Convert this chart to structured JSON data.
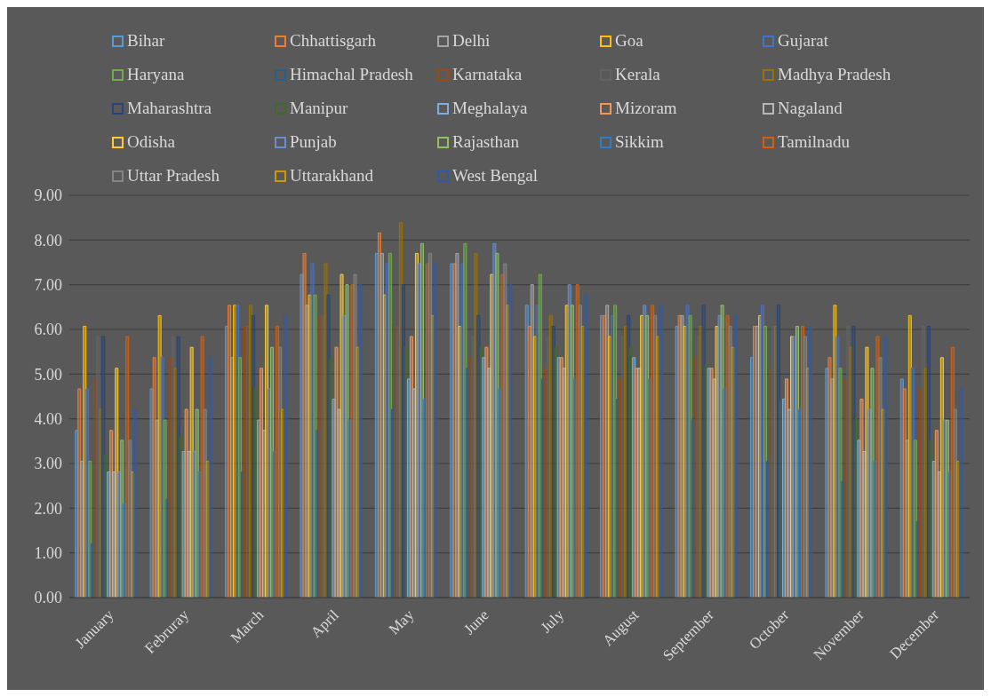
{
  "chart_data": {
    "type": "bar",
    "categories": [
      "January",
      "Februray",
      "March",
      "April",
      "May",
      "June",
      "July",
      "August",
      "September",
      "October",
      "November",
      "December"
    ],
    "ylim": [
      0,
      9
    ],
    "yticks": [
      {
        "value": 0,
        "label": "0.00"
      },
      {
        "value": 1,
        "label": "1.00"
      },
      {
        "value": 2,
        "label": "2.00"
      },
      {
        "value": 3,
        "label": "3.00"
      },
      {
        "value": 4,
        "label": "4.00"
      },
      {
        "value": 5,
        "label": "5.00"
      },
      {
        "value": 6,
        "label": "6.00"
      },
      {
        "value": 7,
        "label": "7.00"
      },
      {
        "value": 8,
        "label": "8.00"
      },
      {
        "value": 9,
        "label": "9.00"
      }
    ],
    "grid": "y",
    "legend": "top",
    "series": [
      {
        "name": "Bihar",
        "color": "#5b9bd5",
        "values": [
          3.74,
          4.67,
          6.07,
          7.23,
          7.7,
          7.47,
          6.54,
          6.31,
          6.07,
          5.37,
          5.13,
          4.89
        ]
      },
      {
        "name": "Chhattisgarh",
        "color": "#ed7d31",
        "values": [
          4.67,
          5.37,
          6.54,
          7.7,
          8.16,
          7.47,
          6.07,
          6.31,
          6.31,
          6.07,
          5.37,
          4.67
        ]
      },
      {
        "name": "Delhi",
        "color": "#a5a5a5",
        "values": [
          3.05,
          3.97,
          5.37,
          6.54,
          7.7,
          7.7,
          7.0,
          6.54,
          6.31,
          6.07,
          4.89,
          3.52
        ]
      },
      {
        "name": "Goa",
        "color": "#ffc000",
        "values": [
          6.07,
          6.31,
          6.54,
          6.77,
          6.77,
          6.07,
          5.84,
          5.84,
          6.07,
          6.31,
          6.54,
          6.31
        ]
      },
      {
        "name": "Gujarat",
        "color": "#4472c4",
        "values": [
          4.67,
          5.37,
          6.54,
          7.47,
          7.47,
          7.47,
          6.54,
          6.31,
          6.54,
          6.54,
          5.84,
          5.13
        ]
      },
      {
        "name": "Haryana",
        "color": "#70ad47",
        "values": [
          3.05,
          3.97,
          5.37,
          6.77,
          7.7,
          7.92,
          7.23,
          6.54,
          6.31,
          6.07,
          5.13,
          3.52
        ]
      },
      {
        "name": "Himachal Pradesh",
        "color": "#255e91",
        "values": [
          1.2,
          2.2,
          2.81,
          3.74,
          4.21,
          5.13,
          4.89,
          4.44,
          3.97,
          3.05,
          2.6,
          1.7
        ]
      },
      {
        "name": "Karnataka",
        "color": "#9e480e",
        "values": [
          4.89,
          5.37,
          6.07,
          6.31,
          6.07,
          5.37,
          5.13,
          4.89,
          5.37,
          5.13,
          4.89,
          4.67
        ]
      },
      {
        "name": "Kerala",
        "color": "#636363",
        "values": [
          5.84,
          5.84,
          6.07,
          6.31,
          6.07,
          5.84,
          5.84,
          5.84,
          5.84,
          6.07,
          6.07,
          6.07
        ]
      },
      {
        "name": "Madhya Pradesh",
        "color": "#997300",
        "values": [
          4.21,
          5.13,
          6.54,
          7.47,
          8.39,
          7.7,
          6.31,
          6.07,
          6.07,
          6.07,
          5.6,
          5.13
        ]
      },
      {
        "name": "Maharashtra",
        "color": "#264478",
        "values": [
          5.84,
          5.84,
          6.31,
          6.77,
          7.0,
          6.31,
          6.07,
          6.31,
          6.54,
          6.54,
          6.07,
          6.07
        ]
      },
      {
        "name": "Manipur",
        "color": "#43682b",
        "values": [
          3.2,
          3.6,
          4.7,
          5.37,
          5.6,
          5.6,
          5.6,
          5.6,
          5.2,
          4.4,
          4.0,
          3.52
        ]
      },
      {
        "name": "Meghalaya",
        "color": "#7cafdd",
        "values": [
          2.81,
          3.27,
          3.97,
          4.44,
          4.89,
          5.37,
          5.37,
          5.37,
          5.13,
          4.44,
          3.52,
          3.05
        ]
      },
      {
        "name": "Mizoram",
        "color": "#f1975a",
        "values": [
          3.74,
          4.21,
          5.13,
          5.6,
          5.84,
          5.6,
          5.37,
          5.13,
          5.13,
          4.89,
          4.44,
          3.74
        ]
      },
      {
        "name": "Nagaland",
        "color": "#b7b7b7",
        "values": [
          2.81,
          3.27,
          3.74,
          4.21,
          4.67,
          5.13,
          5.13,
          5.13,
          4.89,
          4.21,
          3.27,
          2.81
        ]
      },
      {
        "name": "Odisha",
        "color": "#ffcd33",
        "values": [
          5.13,
          5.6,
          6.54,
          7.23,
          7.7,
          7.23,
          6.54,
          6.31,
          6.07,
          5.84,
          5.6,
          5.37
        ]
      },
      {
        "name": "Punjab",
        "color": "#698ed0",
        "values": [
          2.81,
          3.27,
          4.67,
          6.31,
          7.47,
          7.92,
          7.0,
          6.54,
          6.31,
          5.84,
          4.21,
          3.97
        ]
      },
      {
        "name": "Rajasthan",
        "color": "#8cc168",
        "values": [
          3.52,
          4.21,
          5.6,
          7.0,
          7.92,
          7.7,
          6.54,
          6.31,
          6.54,
          6.07,
          5.13,
          3.97
        ]
      },
      {
        "name": "Sikkim",
        "color": "#327dc2",
        "values": [
          2.1,
          2.81,
          3.27,
          3.97,
          4.44,
          4.67,
          4.89,
          4.89,
          4.67,
          4.21,
          3.05,
          2.81
        ]
      },
      {
        "name": "Tamilnadu",
        "color": "#d26012",
        "values": [
          5.84,
          5.84,
          6.07,
          7.0,
          7.47,
          7.23,
          7.0,
          6.54,
          6.31,
          6.07,
          5.84,
          5.6
        ]
      },
      {
        "name": "Uttar Pradesh",
        "color": "#848484",
        "values": [
          3.52,
          4.21,
          5.6,
          7.23,
          7.7,
          7.47,
          6.54,
          6.31,
          6.07,
          5.84,
          5.37,
          4.21
        ]
      },
      {
        "name": "Uttarakhand",
        "color": "#cc9a00",
        "values": [
          2.81,
          3.05,
          4.21,
          5.6,
          6.31,
          6.54,
          6.07,
          5.84,
          5.6,
          5.13,
          4.21,
          3.05
        ]
      },
      {
        "name": "West Bengal",
        "color": "#335aa1",
        "values": [
          4.21,
          5.37,
          6.31,
          7.0,
          7.47,
          7.0,
          6.77,
          6.54,
          6.31,
          6.07,
          5.84,
          4.67
        ]
      }
    ]
  }
}
